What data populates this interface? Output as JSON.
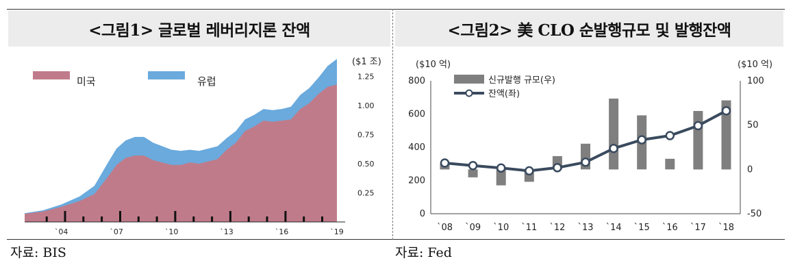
{
  "figure1": {
    "title": "<그림1> 글로벌 레버리지론 잔액",
    "source": "자료: BIS",
    "chart_data": {
      "type": "area",
      "stacked": true,
      "unit_label": "($1 조)",
      "yticks": [
        "0.25",
        "0.50",
        "0.75",
        "1.00",
        "1.25"
      ],
      "ylim": [
        0,
        1.4
      ],
      "xticks": [
        "`04",
        "`07",
        "`10",
        "`13",
        "`16",
        "`19"
      ],
      "xlim": [
        2002.0,
        2019.3
      ],
      "legend_position": "top-left",
      "colors": {
        "미국": "#c07b8a",
        "유럽": "#6aaadd"
      },
      "x": [
        2002.0,
        2003.0,
        2004.0,
        2005.0,
        2005.8,
        2006.5,
        2007.0,
        2007.5,
        2008.0,
        2008.5,
        2009.0,
        2009.5,
        2010.0,
        2010.5,
        2011.0,
        2011.5,
        2012.0,
        2012.5,
        2013.0,
        2013.5,
        2014.0,
        2014.5,
        2015.0,
        2015.5,
        2016.0,
        2016.5,
        2017.0,
        2017.5,
        2018.0,
        2018.5,
        2019.0
      ],
      "series": [
        {
          "name": "미국",
          "values": [
            0.07,
            0.09,
            0.13,
            0.18,
            0.24,
            0.38,
            0.49,
            0.55,
            0.57,
            0.57,
            0.53,
            0.51,
            0.49,
            0.49,
            0.51,
            0.5,
            0.52,
            0.54,
            0.62,
            0.68,
            0.78,
            0.82,
            0.87,
            0.86,
            0.87,
            0.88,
            0.97,
            1.02,
            1.1,
            1.16,
            1.18
          ]
        },
        {
          "name": "유럽",
          "values": [
            0.005,
            0.01,
            0.02,
            0.04,
            0.07,
            0.12,
            0.14,
            0.15,
            0.16,
            0.16,
            0.15,
            0.14,
            0.13,
            0.12,
            0.11,
            0.11,
            0.11,
            0.11,
            0.1,
            0.1,
            0.1,
            0.1,
            0.1,
            0.1,
            0.1,
            0.11,
            0.12,
            0.13,
            0.14,
            0.18,
            0.22
          ]
        }
      ],
      "bars_bottom": "black tick markers along the x-axis"
    }
  },
  "figure2": {
    "title": "<그림2> 美 CLO 순발행규모 및 발행잔액",
    "source": "자료: Fed",
    "chart_data": {
      "type": "bar+line",
      "left_unit_label": "($10 억)",
      "right_unit_label": "($10 억)",
      "categories": [
        "`08",
        "`09",
        "`10",
        "`11",
        "`12",
        "`13",
        "`14",
        "`15",
        "`16",
        "`17",
        "`18"
      ],
      "left_axis": {
        "ylim": [
          0,
          800
        ],
        "ticks": [
          "0",
          "200",
          "400",
          "600",
          "800"
        ]
      },
      "right_axis": {
        "ylim": [
          -50,
          100
        ],
        "ticks": [
          "-50",
          "0",
          "50",
          "100"
        ]
      },
      "series": [
        {
          "name": "신규발행 규모(우)",
          "type": "bar",
          "axis": "right",
          "color": "#7f7f7f",
          "values": [
            7,
            -9,
            -18,
            -14,
            15,
            29,
            80,
            61,
            12,
            66,
            78
          ]
        },
        {
          "name": "잔액(좌)",
          "type": "line",
          "axis": "left",
          "color": "#3a4a5e",
          "values": [
            305,
            290,
            275,
            258,
            277,
            310,
            393,
            445,
            470,
            530,
            620
          ]
        }
      ]
    }
  }
}
